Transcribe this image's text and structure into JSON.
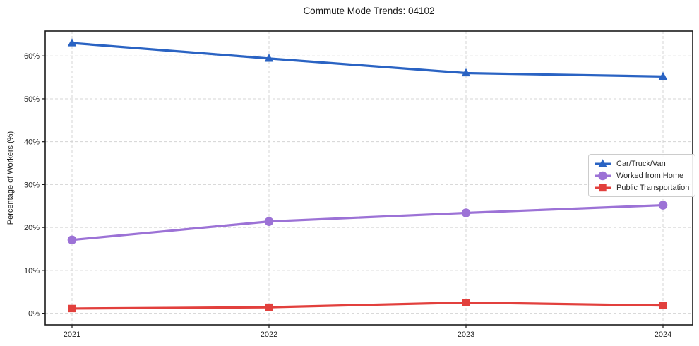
{
  "title": "Commute Mode Trends: 04102",
  "chart_data": {
    "type": "line",
    "title": "Commute Mode Trends: 04102",
    "xlabel": "",
    "ylabel": "Percentage of Workers (%)",
    "categories": [
      "2021",
      "2022",
      "2023",
      "2024"
    ],
    "series": [
      {
        "name": "Car/Truck/Van",
        "color": "#2a63c3",
        "marker": "triangle",
        "values": [
          63.0,
          59.4,
          56.0,
          55.2
        ]
      },
      {
        "name": "Worked from Home",
        "color": "#9c72d6",
        "marker": "circle",
        "values": [
          17.1,
          21.4,
          23.4,
          25.2
        ]
      },
      {
        "name": "Public Transportation",
        "color": "#e2403d",
        "marker": "square",
        "values": [
          1.1,
          1.4,
          2.5,
          1.8
        ]
      }
    ],
    "yticks": [
      0,
      10,
      20,
      30,
      40,
      50,
      60
    ],
    "ytick_labels": [
      "0%",
      "10%",
      "20%",
      "30%",
      "40%",
      "50%",
      "60%"
    ],
    "ylim": [
      -2.7,
      65.8
    ],
    "grid": "both-dashed",
    "legend_position": "center-right"
  },
  "colors": {
    "grid": "#d4d4d4",
    "spine": "#1a1a1a",
    "tick_text": "#262626",
    "background": "#ffffff",
    "legend_border": "#cccccc"
  }
}
